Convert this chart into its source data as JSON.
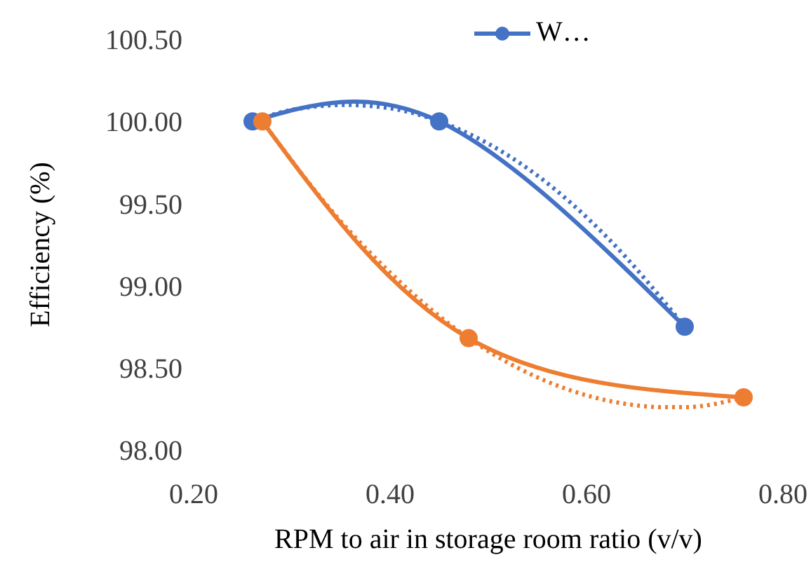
{
  "chart_data": {
    "type": "line",
    "xlabel": "RPM to air in storage room ratio (v/v)",
    "ylabel": "Efficiency (%)",
    "xlim": [
      0.2,
      0.8
    ],
    "xticks": [
      {
        "value": 0.2,
        "label": "0.20"
      },
      {
        "value": 0.4,
        "label": "0.40"
      },
      {
        "value": 0.6,
        "label": "0.60"
      },
      {
        "value": 0.8,
        "label": "0.80"
      }
    ],
    "ylim": [
      98,
      100.5
    ],
    "yticks": [
      {
        "value": 98,
        "label": "98.00"
      },
      {
        "value": 98.5,
        "label": "98.50"
      },
      {
        "value": 99,
        "label": "99.00"
      },
      {
        "value": 99.5,
        "label": "99.50"
      },
      {
        "value": 100,
        "label": "100.00"
      },
      {
        "value": 100.5,
        "label": "100.50"
      }
    ],
    "legend": "top",
    "marker": "circle",
    "line_style": "solid",
    "series": [
      {
        "name": "W…",
        "color": "#4472c4",
        "x": [
          0.26,
          0.45,
          0.7
        ],
        "values": [
          100,
          100,
          98.75
        ]
      },
      {
        "color": "#ed7d31",
        "x": [
          0.27,
          0.48,
          0.76
        ],
        "values": [
          100,
          98.68,
          98.32
        ]
      },
      {
        "color": "#4472c4",
        "marker": "none",
        "line_style": "dotted",
        "x": [
          0.26,
          0.3,
          0.355,
          0.4,
          0.45,
          0.55,
          0.62,
          0.7
        ],
        "values": [
          100,
          100.07,
          100.1,
          100.08,
          100,
          99.67,
          99.3,
          98.75
        ]
      },
      {
        "color": "#ed7d31",
        "marker": "none",
        "line_style": "dotted",
        "x": [
          0.27,
          0.35,
          0.4,
          0.48,
          0.58,
          0.63,
          0.68,
          0.7,
          0.76
        ],
        "values": [
          100,
          99.39,
          99.08,
          98.68,
          98.37,
          98.29,
          98.26,
          98.26,
          98.32
        ]
      }
    ]
  }
}
